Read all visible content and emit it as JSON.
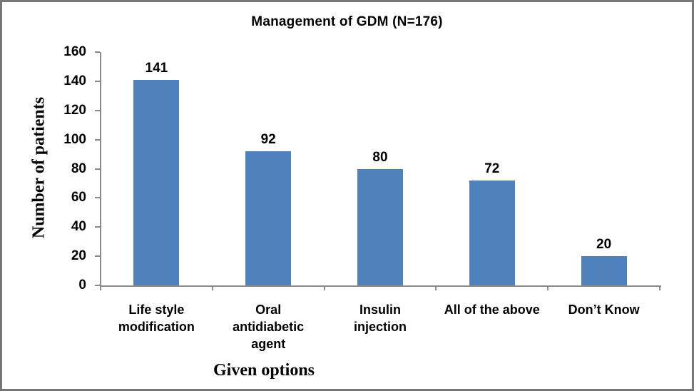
{
  "chart_data": {
    "type": "bar",
    "title": "Management of GDM (N=176)",
    "xlabel": "Given options",
    "ylabel": "Number of patients",
    "categories": [
      "Life style\nmodification",
      "Oral\nantidiabetic\nagent",
      "Insulin\ninjection",
      "All of the above",
      "Don’t Know"
    ],
    "values": [
      141,
      92,
      80,
      72,
      20
    ],
    "ylim": [
      0,
      160
    ],
    "ytick_step": 20,
    "grid": false,
    "legend": "none",
    "data_labels": [
      "141",
      "92",
      "80",
      "72",
      "20"
    ],
    "ytick_labels": [
      "0",
      "20",
      "40",
      "60",
      "80",
      "100",
      "120",
      "140",
      "160"
    ],
    "bar_color": "#4F81BD",
    "axis_color": "#8A8A8A",
    "text_color": "#000000",
    "background_color": "#FFFFFF",
    "frame_border_color": "#767676"
  }
}
